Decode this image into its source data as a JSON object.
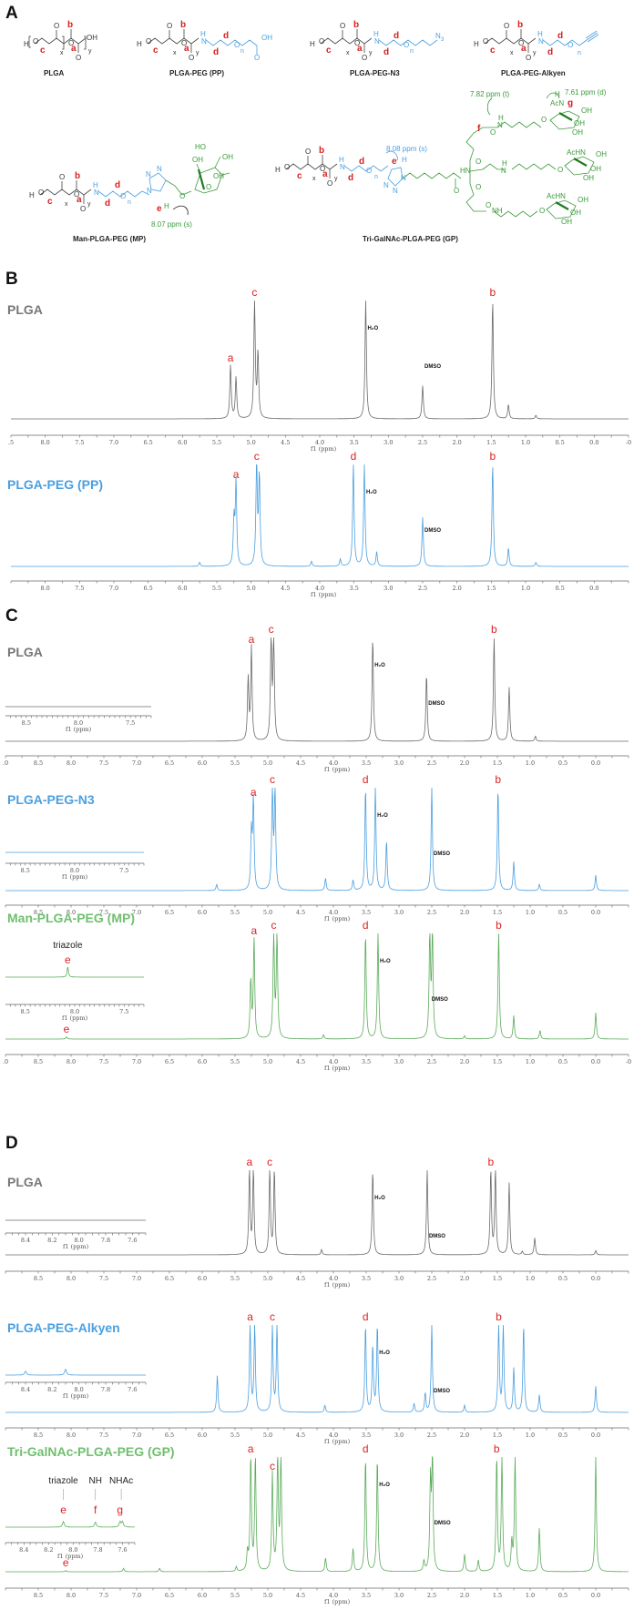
{
  "panels": {
    "A": {
      "letter": "A",
      "structures": [
        {
          "name": "PLGA",
          "labels": [
            "b",
            "c",
            "a"
          ],
          "repeat": [
            "x",
            "y"
          ]
        },
        {
          "name": "PLGA-PEG (PP)",
          "labels": [
            "b",
            "c",
            "a",
            "d",
            "d"
          ],
          "repeat": [
            "x",
            "y",
            "n"
          ]
        },
        {
          "name": "PLGA-PEG-N3",
          "labels": [
            "b",
            "c",
            "a",
            "d",
            "d"
          ],
          "repeat": [
            "x",
            "y",
            "n"
          ],
          "terminal": "N3"
        },
        {
          "name": "PLGA-PEG-Alkyen",
          "labels": [
            "b",
            "c",
            "a",
            "d",
            "d"
          ],
          "repeat": [
            "x",
            "y",
            "n"
          ]
        },
        {
          "name": "Man-PLGA-PEG (MP)",
          "labels": [
            "b",
            "c",
            "a",
            "d",
            "d",
            "e"
          ],
          "annotation": "8.07 ppm (s)"
        },
        {
          "name": "Tri-GalNAc-PLGA-PEG (GP)",
          "labels": [
            "b",
            "c",
            "a",
            "d",
            "d",
            "e",
            "f",
            "g"
          ],
          "annotations": [
            "8.08 ppm (s)",
            "7.82 ppm (t)",
            "7.61 ppm (d)"
          ],
          "groups": [
            "AcN",
            "AcHN",
            "AcHN",
            "NH",
            "HN"
          ]
        }
      ]
    },
    "B": {
      "letter": "B"
    },
    "C": {
      "letter": "C"
    },
    "D": {
      "letter": "D"
    }
  },
  "colors": {
    "plga": "#6b6b6b",
    "peg_blue": "#4a9fe0",
    "green": "#5aab5a",
    "dark_green": "#1f8a1f",
    "label_red": "#d42020",
    "title_gray": "#777777",
    "title_blue": "#4a9fe0",
    "title_green": "#6fbf6f"
  },
  "axis": {
    "xlabel": "f1 (ppm)"
  },
  "chart_data": [
    {
      "panel": "B",
      "type": "line",
      "title": "PLGA",
      "xlabel": "f1 (ppm)",
      "xlim": [
        8.5,
        -0.5
      ],
      "ticks": [
        ".5",
        "8.0",
        "7.5",
        "7.0",
        "6.5",
        "6.0",
        "5.5",
        "5.0",
        "4.5",
        "4.0",
        "3.5",
        "3.0",
        "2.5",
        "2.0",
        "1.5",
        "1.0",
        "0.5",
        "0.0",
        "-0"
      ],
      "peaks": [
        {
          "ppm": 5.3,
          "h": 0.45,
          "label": "a"
        },
        {
          "ppm": 5.22,
          "h": 0.35
        },
        {
          "ppm": 4.95,
          "h": 1.0,
          "label": "c"
        },
        {
          "ppm": 4.9,
          "h": 0.55
        },
        {
          "ppm": 3.33,
          "h": 1.0,
          "label": "H2O"
        },
        {
          "ppm": 2.5,
          "h": 0.28,
          "label": "DMSO"
        },
        {
          "ppm": 1.48,
          "h": 1.0,
          "label": "b"
        },
        {
          "ppm": 1.25,
          "h": 0.12
        },
        {
          "ppm": 0.85,
          "h": 0.03
        }
      ]
    },
    {
      "panel": "B",
      "type": "line",
      "title": "PLGA-PEG (PP)",
      "xlabel": "f1 (ppm)",
      "xlim": [
        8.5,
        -0.5
      ],
      "ticks": [
        "8.0",
        "7.5",
        "7.0",
        "6.5",
        "6.0",
        "5.5",
        "5.0",
        "4.5",
        "4.0",
        "3.5",
        "3.0",
        "2.5",
        "2.0",
        "1.5",
        "1.0",
        "0.5",
        "0.0"
      ],
      "peaks": [
        {
          "ppm": 5.75,
          "h": 0.04
        },
        {
          "ppm": 5.22,
          "h": 0.82,
          "label": "a"
        },
        {
          "ppm": 5.25,
          "h": 0.45
        },
        {
          "ppm": 4.92,
          "h": 1.0,
          "label": "c"
        },
        {
          "ppm": 4.88,
          "h": 0.88
        },
        {
          "ppm": 4.12,
          "h": 0.05
        },
        {
          "ppm": 3.7,
          "h": 0.07
        },
        {
          "ppm": 3.51,
          "h": 1.0,
          "label": "d"
        },
        {
          "ppm": 3.35,
          "h": 1.0,
          "label": "H2O"
        },
        {
          "ppm": 3.17,
          "h": 0.14
        },
        {
          "ppm": 2.5,
          "h": 0.48,
          "label": "DMSO"
        },
        {
          "ppm": 1.48,
          "h": 1.0,
          "label": "b"
        },
        {
          "ppm": 1.25,
          "h": 0.18
        },
        {
          "ppm": 0.85,
          "h": 0.04
        }
      ]
    },
    {
      "panel": "C",
      "type": "line",
      "title": "PLGA",
      "xlabel": "f1 (ppm)",
      "xlim": [
        9.0,
        -0.5
      ],
      "ticks": [
        ".0",
        "8.5",
        "8.0",
        "7.5",
        "7.0",
        "6.5",
        "6.0",
        "5.5",
        "5.0",
        "4.5",
        "4.0",
        "3.5",
        "3.0",
        "2.5",
        "2.0",
        "1.5",
        "1.0",
        "0.5",
        "0.0"
      ],
      "inset": {
        "xlim": [
          8.7,
          7.3
        ],
        "ticks": [
          "8.5",
          "8.0",
          "7.5"
        ],
        "xlabel": "f1 (ppm)",
        "peaks": []
      },
      "peaks": [
        {
          "ppm": 5.25,
          "h": 0.9,
          "label": "a"
        },
        {
          "ppm": 5.3,
          "h": 0.6
        },
        {
          "ppm": 4.95,
          "h": 1.0,
          "label": "c"
        },
        {
          "ppm": 4.91,
          "h": 1.0
        },
        {
          "ppm": 3.4,
          "h": 1.0,
          "label": "H2O"
        },
        {
          "ppm": 2.58,
          "h": 0.65,
          "label": "DMSO"
        },
        {
          "ppm": 1.55,
          "h": 1.0,
          "label": "b"
        },
        {
          "ppm": 1.32,
          "h": 0.52
        },
        {
          "ppm": 0.92,
          "h": 0.05
        }
      ]
    },
    {
      "panel": "C",
      "type": "line",
      "title": "PLGA-PEG-N3",
      "xlabel": "f1 (ppm)",
      "xlim": [
        9.0,
        -0.5
      ],
      "ticks": [
        "8.5",
        "8.0",
        "7.5",
        "7.0",
        "6.5",
        "6.0",
        "5.5",
        "5.0",
        "4.5",
        "4.0",
        "3.5",
        "3.0",
        "2.5",
        "2.0",
        "1.5",
        "1.0",
        "0.5",
        "0.0"
      ],
      "inset": {
        "xlim": [
          8.7,
          7.3
        ],
        "ticks": [
          "8.5",
          "8.0",
          "7.5"
        ],
        "xlabel": "f1 (ppm)",
        "peaks": []
      },
      "peaks": [
        {
          "ppm": 5.78,
          "h": 0.06
        },
        {
          "ppm": 5.22,
          "h": 0.88,
          "label": "a"
        },
        {
          "ppm": 5.25,
          "h": 0.55
        },
        {
          "ppm": 4.93,
          "h": 1.0,
          "label": "c"
        },
        {
          "ppm": 4.89,
          "h": 1.0
        },
        {
          "ppm": 4.12,
          "h": 0.12
        },
        {
          "ppm": 3.7,
          "h": 0.1
        },
        {
          "ppm": 3.51,
          "h": 1.0,
          "label": "d"
        },
        {
          "ppm": 3.36,
          "h": 1.0,
          "label": "H2O"
        },
        {
          "ppm": 3.19,
          "h": 0.48
        },
        {
          "ppm": 2.5,
          "h": 1.0,
          "label": "DMSO"
        },
        {
          "ppm": 1.49,
          "h": 1.0,
          "label": "b"
        },
        {
          "ppm": 1.25,
          "h": 0.28
        },
        {
          "ppm": 0.86,
          "h": 0.06
        },
        {
          "ppm": 0.0,
          "h": 0.15
        }
      ]
    },
    {
      "panel": "C",
      "type": "line",
      "title": "Man-PLGA-PEG (MP)",
      "xlabel": "f1 (ppm)",
      "xlim": [
        9.0,
        -0.5
      ],
      "ticks": [
        ".0",
        "8.5",
        "8.0",
        "7.5",
        "7.0",
        "6.5",
        "6.0",
        "5.5",
        "5.0",
        "4.5",
        "4.0",
        "3.5",
        "3.0",
        "2.5",
        "2.0",
        "1.5",
        "1.0",
        "0.5",
        "0.0",
        "-0"
      ],
      "inset": {
        "xlim": [
          8.7,
          7.3
        ],
        "ticks": [
          "8.5",
          "8.0",
          "7.5"
        ],
        "xlabel": "f1 (ppm)",
        "title": "triazole",
        "peaks": [
          {
            "ppm": 8.07,
            "h": 0.8,
            "label": "e"
          }
        ]
      },
      "peaks": [
        {
          "ppm": 8.07,
          "h": 0.02,
          "label": "e"
        },
        {
          "ppm": 5.21,
          "h": 0.95,
          "label": "a"
        },
        {
          "ppm": 5.26,
          "h": 0.55
        },
        {
          "ppm": 4.91,
          "h": 1.0,
          "label": "c"
        },
        {
          "ppm": 4.86,
          "h": 1.0
        },
        {
          "ppm": 4.15,
          "h": 0.04
        },
        {
          "ppm": 3.51,
          "h": 1.0,
          "label": "d"
        },
        {
          "ppm": 3.32,
          "h": 1.0,
          "label": "H2O"
        },
        {
          "ppm": 2.53,
          "h": 1.0,
          "label": "DMSO"
        },
        {
          "ppm": 2.49,
          "h": 1.0
        },
        {
          "ppm": 2.0,
          "h": 0.03
        },
        {
          "ppm": 1.48,
          "h": 1.0,
          "label": "b"
        },
        {
          "ppm": 1.25,
          "h": 0.22
        },
        {
          "ppm": 0.85,
          "h": 0.08
        },
        {
          "ppm": 0.0,
          "h": 0.25
        }
      ]
    },
    {
      "panel": "D",
      "type": "line",
      "title": "PLGA",
      "xlabel": "f1 (ppm)",
      "xlim": [
        9.0,
        -0.5
      ],
      "ticks": [
        "8.5",
        "8.0",
        "7.5",
        "7.0",
        "6.5",
        "6.0",
        "5.5",
        "5.0",
        "4.5",
        "4.0",
        "3.5",
        "3.0",
        "2.5",
        "2.0",
        "1.5",
        "1.0",
        "0.5",
        "0.0"
      ],
      "inset": {
        "xlim": [
          8.55,
          7.5
        ],
        "ticks": [
          "8.4",
          "8.2",
          "8.0",
          "7.8",
          "7.6"
        ],
        "xlabel": "f1 (ppm)",
        "peaks": []
      },
      "peaks": [
        {
          "ppm": 5.28,
          "h": 1.0,
          "label": "a"
        },
        {
          "ppm": 5.22,
          "h": 1.0
        },
        {
          "ppm": 4.97,
          "h": 1.0,
          "label": "c"
        },
        {
          "ppm": 4.9,
          "h": 1.0
        },
        {
          "ppm": 4.18,
          "h": 0.06
        },
        {
          "ppm": 3.4,
          "h": 1.0,
          "label": "H2O"
        },
        {
          "ppm": 2.57,
          "h": 1.0,
          "label": "DMSO"
        },
        {
          "ppm": 1.6,
          "h": 1.0,
          "label": "b"
        },
        {
          "ppm": 1.53,
          "h": 1.0
        },
        {
          "ppm": 1.32,
          "h": 0.85
        },
        {
          "ppm": 1.12,
          "h": 0.04
        },
        {
          "ppm": 0.93,
          "h": 0.2
        },
        {
          "ppm": 0.0,
          "h": 0.05
        }
      ]
    },
    {
      "panel": "D",
      "type": "line",
      "title": "PLGA-PEG-Alkyen",
      "xlabel": "f1 (ppm)",
      "xlim": [
        9.0,
        -0.5
      ],
      "ticks": [
        "8.5",
        "8.0",
        "7.5",
        "7.0",
        "6.5",
        "6.0",
        "5.5",
        "5.0",
        "4.5",
        "4.0",
        "3.5",
        "3.0",
        "2.5",
        "2.0",
        "1.5",
        "1.0",
        "0.5",
        "0.0"
      ],
      "inset": {
        "xlim": [
          8.55,
          7.5
        ],
        "ticks": [
          "8.4",
          "8.2",
          "8.0",
          "7.8",
          "7.6"
        ],
        "xlabel": "f1 (ppm)",
        "peaks": [
          {
            "ppm": 8.4,
            "h": 0.3
          },
          {
            "ppm": 8.1,
            "h": 0.45
          }
        ]
      },
      "peaks": [
        {
          "ppm": 5.77,
          "h": 0.42
        },
        {
          "ppm": 5.27,
          "h": 1.0,
          "label": "a"
        },
        {
          "ppm": 5.2,
          "h": 1.0
        },
        {
          "ppm": 4.93,
          "h": 1.0,
          "label": "c"
        },
        {
          "ppm": 4.86,
          "h": 1.0
        },
        {
          "ppm": 4.13,
          "h": 0.08
        },
        {
          "ppm": 3.51,
          "h": 1.0,
          "label": "d"
        },
        {
          "ppm": 3.4,
          "h": 0.75
        },
        {
          "ppm": 3.33,
          "h": 1.0,
          "label": "H2O"
        },
        {
          "ppm": 2.77,
          "h": 0.1
        },
        {
          "ppm": 2.6,
          "h": 0.22
        },
        {
          "ppm": 2.5,
          "h": 1.0,
          "label": "DMSO"
        },
        {
          "ppm": 2.0,
          "h": 0.08
        },
        {
          "ppm": 1.48,
          "h": 1.0,
          "label": "b"
        },
        {
          "ppm": 1.41,
          "h": 1.0
        },
        {
          "ppm": 1.25,
          "h": 0.5
        },
        {
          "ppm": 1.1,
          "h": 1.0
        },
        {
          "ppm": 0.86,
          "h": 0.2
        },
        {
          "ppm": 0.0,
          "h": 0.3
        }
      ]
    },
    {
      "panel": "D",
      "type": "line",
      "title": "Tri-GalNAc-PLGA-PEG (GP)",
      "xlabel": "f1 (ppm)",
      "xlim": [
        9.0,
        -0.5
      ],
      "ticks": [
        "8.5",
        "8.0",
        "7.5",
        "7.0",
        "6.5",
        "6.0",
        "5.5",
        "5.0",
        "4.5",
        "4.0",
        "3.5",
        "3.0",
        "2.5",
        "2.0",
        "1.5",
        "1.0",
        "0.5",
        "0.0"
      ],
      "inset": {
        "xlim": [
          8.55,
          7.5
        ],
        "ticks": [
          "8.4",
          "8.2",
          "8.0",
          "7.8",
          "7.6"
        ],
        "xlabel": "f1 (ppm)",
        "annotations": [
          {
            "text": "triazole",
            "ppm": 8.08
          },
          {
            "text": "NH",
            "ppm": 7.82
          },
          {
            "text": "NHAc",
            "ppm": 7.61
          }
        ],
        "peaks": [
          {
            "ppm": 8.08,
            "h": 0.45,
            "label": "e"
          },
          {
            "ppm": 7.82,
            "h": 0.4,
            "label": "f"
          },
          {
            "ppm": 7.62,
            "h": 0.42,
            "label": "g"
          },
          {
            "ppm": 7.6,
            "h": 0.42
          }
        ]
      },
      "peaks": [
        {
          "ppm": 8.08,
          "h": 0.01,
          "label": "e"
        },
        {
          "ppm": 7.2,
          "h": 0.03
        },
        {
          "ppm": 6.65,
          "h": 0.03
        },
        {
          "ppm": 5.48,
          "h": 0.04
        },
        {
          "ppm": 5.31,
          "h": 0.16
        },
        {
          "ppm": 5.26,
          "h": 1.0,
          "label": "a"
        },
        {
          "ppm": 5.19,
          "h": 1.0
        },
        {
          "ppm": 4.93,
          "h": 0.85,
          "label": "c"
        },
        {
          "ppm": 4.85,
          "h": 1.0
        },
        {
          "ppm": 4.8,
          "h": 1.0
        },
        {
          "ppm": 4.12,
          "h": 0.12
        },
        {
          "ppm": 3.7,
          "h": 0.2
        },
        {
          "ppm": 3.51,
          "h": 1.0,
          "label": "d"
        },
        {
          "ppm": 3.33,
          "h": 1.0,
          "label": "H2O"
        },
        {
          "ppm": 2.62,
          "h": 0.09
        },
        {
          "ppm": 2.52,
          "h": 0.78
        },
        {
          "ppm": 2.49,
          "h": 1.0,
          "label": "DMSO"
        },
        {
          "ppm": 2.0,
          "h": 0.15
        },
        {
          "ppm": 1.79,
          "h": 0.1
        },
        {
          "ppm": 1.51,
          "h": 1.0,
          "label": "b"
        },
        {
          "ppm": 1.43,
          "h": 1.0
        },
        {
          "ppm": 1.28,
          "h": 0.25
        },
        {
          "ppm": 1.23,
          "h": 1.0
        },
        {
          "ppm": 0.86,
          "h": 0.38
        },
        {
          "ppm": 0.0,
          "h": 1.0
        }
      ]
    }
  ]
}
